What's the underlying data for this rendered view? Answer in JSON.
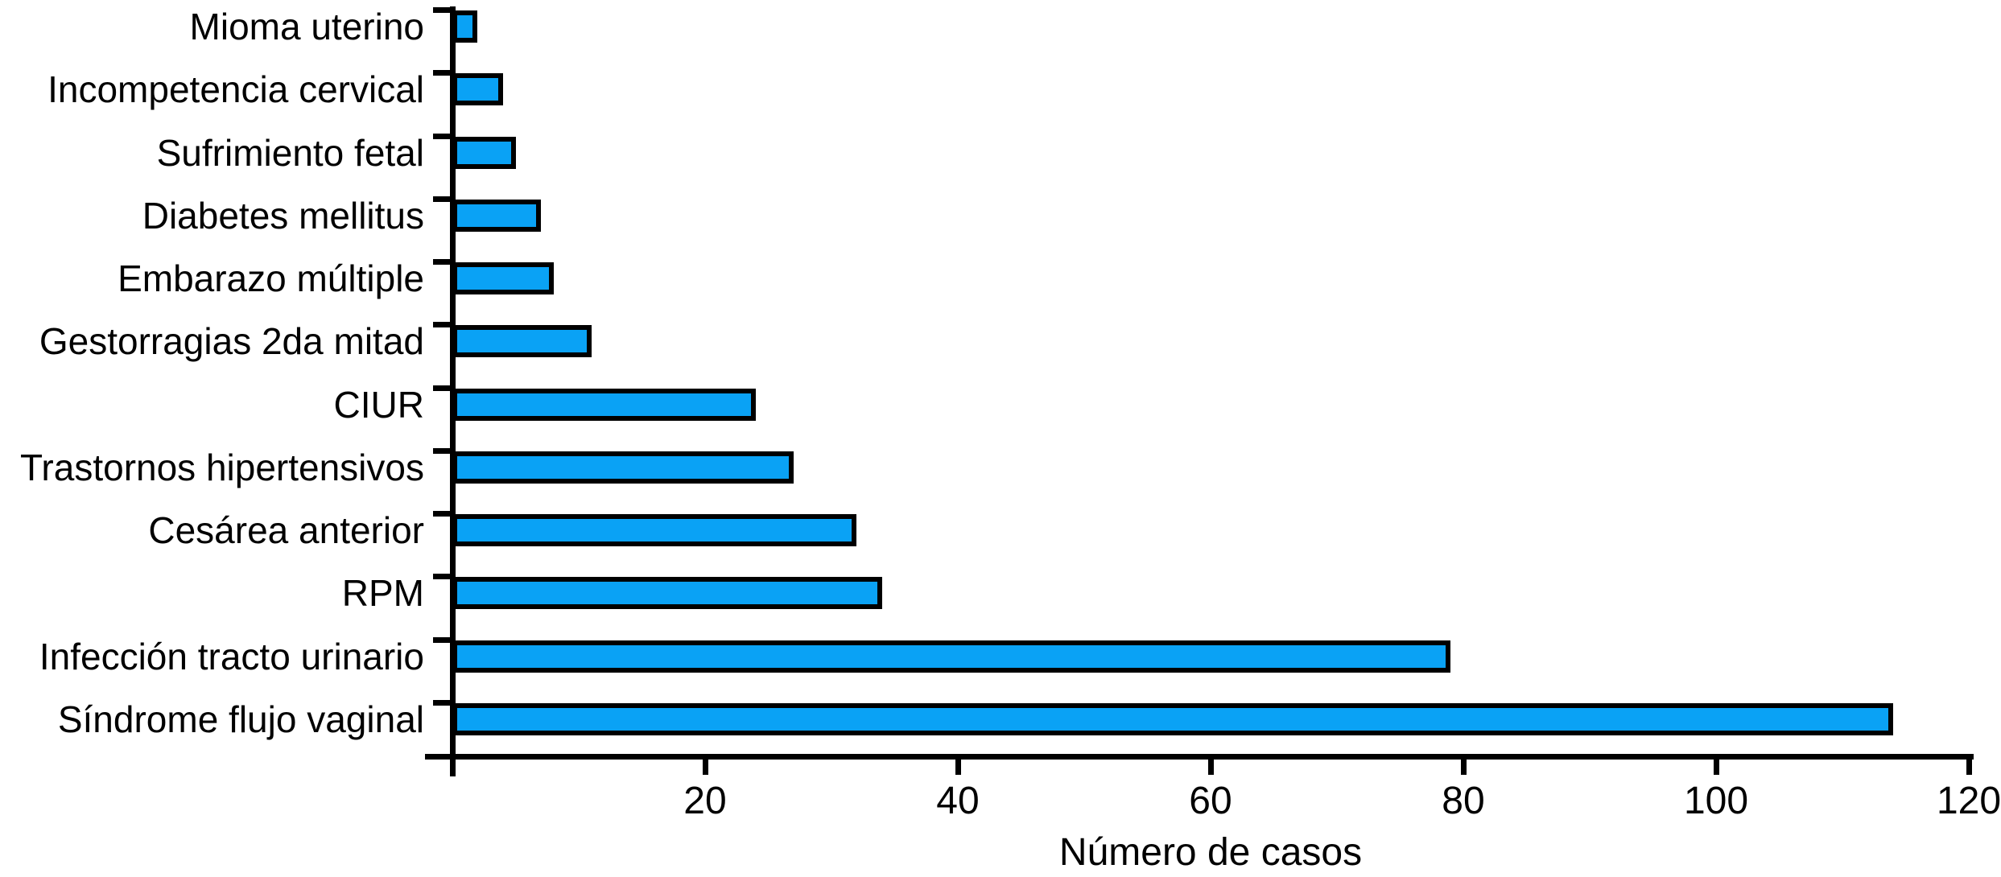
{
  "chart_data": {
    "type": "bar",
    "orientation": "horizontal",
    "title": "",
    "xlabel": "Número de casos",
    "ylabel": "",
    "categories": [
      "Mioma uterino",
      "Incompetencia cervical",
      "Sufrimiento fetal",
      "Diabetes mellitus",
      "Embarazo múltiple",
      "Gestorragias 2da mitad",
      "CIUR",
      "Trastornos hipertensivos",
      "Cesárea anterior",
      "RPM",
      "Infección tracto urinario",
      "Síndrome flujo vaginal"
    ],
    "values": [
      2,
      4,
      5,
      7,
      8,
      11,
      24,
      27,
      32,
      34,
      79,
      114
    ],
    "xlim": [
      0,
      120
    ],
    "x_ticks": [
      20,
      40,
      60,
      80,
      100,
      120
    ],
    "grid": false,
    "legend": false,
    "colors": {
      "bar_fill": "#0AA2F5",
      "bar_border": "#000000",
      "axis": "#000000",
      "text": "#000000"
    }
  }
}
